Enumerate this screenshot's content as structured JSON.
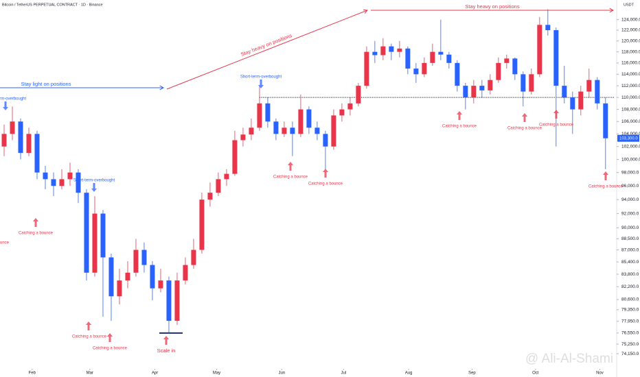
{
  "chart_data": {
    "type": "candlestick",
    "title": "Bitcoin / TetherUS PERPETUAL CONTRACT · 1D · Binance",
    "y_axis_label": "USDT",
    "log_scale": true,
    "grid": false,
    "up_color": "#e8354a",
    "down_color": "#2962ff",
    "xlim": [
      -0.5,
      74.1
    ],
    "xticks": [
      {
        "value": 3.4,
        "label": "Feb"
      },
      {
        "value": 10.4,
        "label": "Mar"
      },
      {
        "value": 18.3,
        "label": "Apr"
      },
      {
        "value": 25.8,
        "label": "May"
      },
      {
        "value": 33.7,
        "label": "Jun"
      },
      {
        "value": 41.2,
        "label": "Jul"
      },
      {
        "value": 49.1,
        "label": "Aug"
      },
      {
        "value": 56.8,
        "label": "Sep"
      },
      {
        "value": 64.5,
        "label": "Oct"
      },
      {
        "value": 72.3,
        "label": "Nov"
      }
    ],
    "ylim": [
      72300,
      127800
    ],
    "yticks": [
      {
        "value": 124000,
        "label": "124,000.0"
      },
      {
        "value": 122000,
        "label": "122,000.0"
      },
      {
        "value": 120000,
        "label": "120,000.0"
      },
      {
        "value": 118000,
        "label": "118,000.0"
      },
      {
        "value": 116000,
        "label": "116,000.0"
      },
      {
        "value": 114000,
        "label": "114,000.0"
      },
      {
        "value": 112000,
        "label": "112,000.0"
      },
      {
        "value": 110000,
        "label": "110,000.0"
      },
      {
        "value": 108000,
        "label": "108,000.0"
      },
      {
        "value": 106000,
        "label": "106,000.0"
      },
      {
        "value": 104000,
        "label": "104,000.0"
      },
      {
        "value": 102000,
        "label": "102,000.0"
      },
      {
        "value": 100000,
        "label": "100,000.0"
      },
      {
        "value": 98000,
        "label": "98,000.0"
      },
      {
        "value": 96000,
        "label": "96,000.0"
      },
      {
        "value": 94000,
        "label": "94,000.0"
      },
      {
        "value": 92000,
        "label": "92,000.0"
      },
      {
        "value": 90000,
        "label": "90,000.0"
      },
      {
        "value": 88500,
        "label": "88,500.0"
      },
      {
        "value": 87000,
        "label": "87,000.0"
      },
      {
        "value": 85400,
        "label": "85,400.0"
      },
      {
        "value": 83800,
        "label": "83,800.0"
      },
      {
        "value": 82200,
        "label": "82,200.0"
      },
      {
        "value": 80600,
        "label": "80,600.0"
      },
      {
        "value": 79350,
        "label": "79,350.0"
      },
      {
        "value": 77950,
        "label": "77,950.0"
      },
      {
        "value": 76550,
        "label": "76,550.0"
      },
      {
        "value": 75250,
        "label": "75,250.0"
      },
      {
        "value": 74150,
        "label": "74,150.0"
      }
    ],
    "open": [
      102000,
      104000,
      106000,
      101000,
      104000,
      98000,
      97000,
      96000,
      97000,
      98000,
      95000,
      84000,
      92000,
      86000,
      81000,
      83000,
      84000,
      87000,
      85000,
      82000,
      83000,
      78000,
      83000,
      85000,
      87000,
      94000,
      95000,
      97000,
      97800,
      103000,
      103900,
      105000,
      109000,
      106000,
      104000,
      105000,
      104000,
      108000,
      105000,
      104000,
      102000,
      107000,
      108000,
      109000,
      112000,
      118000,
      117400,
      119000,
      118000,
      118600,
      115000,
      114000,
      116000,
      118000,
      117500,
      116000,
      112000,
      110000,
      112000,
      111200,
      113000,
      116000,
      116800,
      114000,
      111000,
      114000,
      123000,
      122000,
      112000,
      110000,
      108000,
      111000,
      113000,
      109000
    ],
    "high": [
      105500,
      108500,
      106500,
      105000,
      104500,
      99000,
      98000,
      98500,
      99500,
      98500,
      95500,
      94500,
      92500,
      86500,
      84500,
      85500,
      88500,
      88000,
      85500,
      84500,
      83500,
      84000,
      86000,
      88500,
      95000,
      96500,
      98000,
      98500,
      104500,
      105000,
      106500,
      111900,
      110000,
      106500,
      106000,
      106000,
      110500,
      108500,
      106000,
      104500,
      108000,
      109000,
      110000,
      112500,
      119000,
      120000,
      120500,
      119500,
      120000,
      119000,
      116000,
      117000,
      119500,
      124000,
      118000,
      116500,
      112500,
      113000,
      113000,
      114000,
      117000,
      117500,
      117000,
      114500,
      115000,
      124500,
      126000,
      122500,
      115500,
      111000,
      112000,
      115000,
      113500,
      110000
    ],
    "low": [
      100500,
      103000,
      100000,
      100500,
      97000,
      95500,
      94500,
      95500,
      96000,
      93500,
      83000,
      83500,
      78500,
      78000,
      80000,
      82000,
      83500,
      84000,
      80500,
      81500,
      76500,
      77500,
      82500,
      84500,
      86500,
      93000,
      94500,
      96000,
      97500,
      102000,
      103000,
      104500,
      105000,
      103000,
      103500,
      100500,
      103500,
      104000,
      103000,
      98500,
      101500,
      106000,
      107000,
      108500,
      111500,
      116000,
      116500,
      116500,
      117000,
      114000,
      112500,
      113500,
      115500,
      116500,
      115000,
      111000,
      108000,
      109000,
      110000,
      110500,
      112500,
      115000,
      113000,
      108500,
      110500,
      113500,
      121000,
      102000,
      109000,
      104000,
      107000,
      110000,
      108000,
      98500
    ],
    "close": [
      104000,
      106000,
      101000,
      104000,
      98000,
      97000,
      96000,
      97000,
      98000,
      95000,
      84000,
      92000,
      86000,
      81000,
      83000,
      84000,
      87000,
      85000,
      82000,
      83000,
      78000,
      83000,
      85000,
      87000,
      94000,
      95000,
      97000,
      97800,
      103000,
      103900,
      105000,
      109000,
      106000,
      104000,
      105000,
      104000,
      108000,
      105000,
      104000,
      102000,
      107000,
      108000,
      109000,
      112000,
      118000,
      117400,
      119000,
      118000,
      118600,
      115000,
      114000,
      116000,
      118000,
      117500,
      116000,
      112000,
      110000,
      112000,
      111200,
      113000,
      116000,
      116800,
      114000,
      111000,
      114000,
      123000,
      122000,
      112000,
      110000,
      108000,
      111000,
      113000,
      109000,
      103300
    ],
    "last_price": {
      "value": 103300,
      "label": "103,300.0"
    },
    "hline": {
      "value": 110000,
      "color": "#131722"
    },
    "support": {
      "value": 76550,
      "color": "#1e2e6e"
    },
    "annotations": [
      {
        "text": "Stay light on positions",
        "color": "#2962ff"
      },
      {
        "text": "Stay heavy on positions",
        "color": "#e8354a"
      },
      {
        "text": "Stay heavy on positions",
        "color": "#e8354a"
      },
      {
        "text": "Short-term-overbought",
        "color": "#2962ff"
      },
      {
        "text": "Short-term-overbought",
        "color": "#2962ff"
      },
      {
        "text": "Short-term-overbought",
        "color": "#2962ff"
      },
      {
        "text": "Catching a bounce",
        "color": "#e8354a"
      },
      {
        "text": "Catching a bounce",
        "color": "#e8354a"
      },
      {
        "text": "Catching a bounce",
        "color": "#e8354a"
      },
      {
        "text": "Catching a bounce",
        "color": "#e8354a"
      },
      {
        "text": "Catching a bounce",
        "color": "#e8354a"
      },
      {
        "text": "Catching a bounce",
        "color": "#e8354a"
      },
      {
        "text": "Catching a bounce",
        "color": "#e8354a"
      },
      {
        "text": "Catching a bounce",
        "color": "#e8354a"
      },
      {
        "text": "Catching a bounce",
        "color": "#e8354a"
      },
      {
        "text": "Catching a bounce",
        "color": "#e8354a"
      },
      {
        "text": "Scale in",
        "color": "#e8354a"
      }
    ],
    "watermark": "@ Ali-Al-Shami"
  }
}
